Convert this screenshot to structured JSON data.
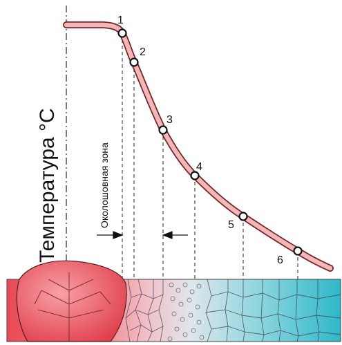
{
  "y_axis_label": "Температура °С",
  "zone_label": "Околошовная зона",
  "points": [
    {
      "label": "1"
    },
    {
      "label": "2"
    },
    {
      "label": "3"
    },
    {
      "label": "4"
    },
    {
      "label": "5"
    },
    {
      "label": "6"
    }
  ],
  "colors": {
    "curve": "#f0b8b8",
    "curve_outline": "#7a2222",
    "weld_metal": "#e84a55",
    "base_metal": "#40c0cf"
  }
}
